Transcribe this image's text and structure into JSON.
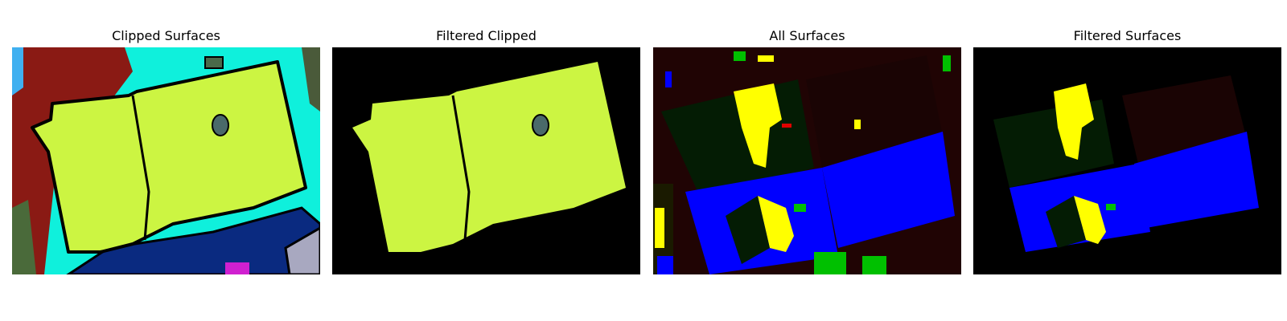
{
  "figure": {
    "panels": [
      {
        "title": "Clipped Surfaces"
      },
      {
        "title": "Filtered Clipped"
      },
      {
        "title": "All Surfaces"
      },
      {
        "title": "Filtered Surfaces"
      }
    ]
  },
  "colors": {
    "roof": "#ccf542",
    "cyan": "#0ff0dc",
    "darkred": "#8a1a14",
    "navy": "#0a2a80",
    "olive": "#4a6a3a",
    "gray": "#a8a8c0",
    "outline": "#000000",
    "dark_maroon": "#200404",
    "dark_green": "#041c04",
    "yellow": "#ffff00",
    "blue": "#0000ff",
    "green": "#00c000",
    "red": "#e00000"
  }
}
